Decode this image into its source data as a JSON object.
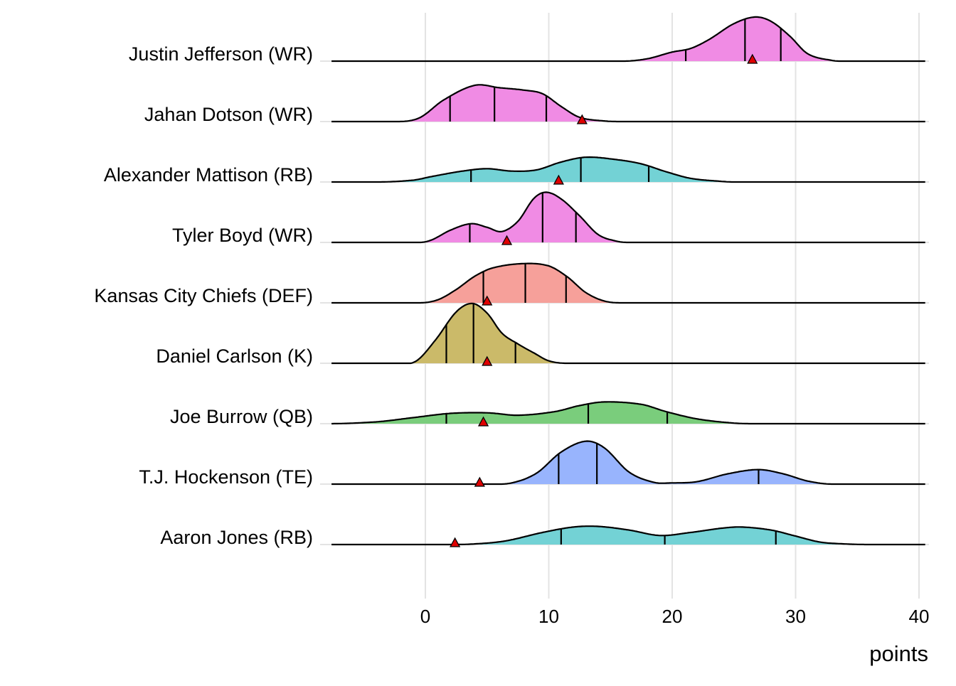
{
  "chart_data": {
    "type": "ridgeline",
    "title": "",
    "xlabel": "points",
    "ylabel": "",
    "xlim": [
      -7.6,
      40.5
    ],
    "xticks": [
      0,
      10,
      20,
      30,
      40
    ],
    "xtick_labels": [
      "0",
      "10",
      "20",
      "30",
      "40"
    ],
    "grid": true,
    "density_scale_note": "relative density height in units of row spacing",
    "colors": {
      "WR": "#f08be4",
      "RB": "#73d2d5",
      "DEF": "#f6a09a",
      "K": "#cbba69",
      "QB": "#7acd7c",
      "TE": "#98b4fd"
    },
    "marker_color": "#e00000",
    "series": [
      {
        "name": "Justin Jefferson (WR)",
        "position": "WR",
        "quantiles": [
          21.1,
          25.9,
          28.8
        ],
        "actual": 26.5,
        "density": [
          [
            16,
            0
          ],
          [
            18,
            0.04
          ],
          [
            20,
            0.15
          ],
          [
            21.5,
            0.21
          ],
          [
            23,
            0.36
          ],
          [
            25,
            0.62
          ],
          [
            26.7,
            0.73
          ],
          [
            28,
            0.66
          ],
          [
            29.5,
            0.42
          ],
          [
            31,
            0.12
          ],
          [
            33,
            0.01
          ],
          [
            34,
            0
          ]
        ]
      },
      {
        "name": "Jahan Dotson (WR)",
        "position": "WR",
        "quantiles": [
          2.0,
          5.6,
          9.8
        ],
        "actual": 12.7,
        "density": [
          [
            -2.5,
            0
          ],
          [
            -0.5,
            0.06
          ],
          [
            1.5,
            0.36
          ],
          [
            4,
            0.6
          ],
          [
            6,
            0.56
          ],
          [
            8,
            0.52
          ],
          [
            9.5,
            0.46
          ],
          [
            11,
            0.25
          ],
          [
            12.5,
            0.07
          ],
          [
            14.5,
            0.01
          ],
          [
            16,
            0
          ]
        ]
      },
      {
        "name": "Alexander Mattison (RB)",
        "position": "RB",
        "quantiles": [
          3.7,
          12.6,
          18.1
        ],
        "actual": 10.8,
        "density": [
          [
            -4,
            0
          ],
          [
            -1,
            0.03
          ],
          [
            0.5,
            0.09
          ],
          [
            3,
            0.18
          ],
          [
            5,
            0.22
          ],
          [
            7,
            0.18
          ],
          [
            9,
            0.2
          ],
          [
            11,
            0.33
          ],
          [
            13,
            0.41
          ],
          [
            15.5,
            0.37
          ],
          [
            17.5,
            0.3
          ],
          [
            19.5,
            0.17
          ],
          [
            21.5,
            0.06
          ],
          [
            24,
            0.01
          ],
          [
            25,
            0
          ]
        ]
      },
      {
        "name": "Tyler Boyd (WR)",
        "position": "WR",
        "quantiles": [
          3.6,
          9.5,
          12.2
        ],
        "actual": 6.6,
        "density": [
          [
            -0.5,
            0
          ],
          [
            0.5,
            0.04
          ],
          [
            2,
            0.2
          ],
          [
            3.7,
            0.31
          ],
          [
            5,
            0.25
          ],
          [
            6.2,
            0.18
          ],
          [
            7.5,
            0.35
          ],
          [
            8.8,
            0.73
          ],
          [
            9.8,
            0.83
          ],
          [
            11,
            0.72
          ],
          [
            12.5,
            0.44
          ],
          [
            14,
            0.13
          ],
          [
            15.5,
            0.02
          ],
          [
            16.5,
            0
          ]
        ]
      },
      {
        "name": "Kansas City Chiefs (DEF)",
        "position": "DEF",
        "quantiles": [
          4.7,
          8.1,
          11.4
        ],
        "actual": 5.0,
        "density": [
          [
            -0.5,
            0
          ],
          [
            1,
            0.05
          ],
          [
            2.5,
            0.22
          ],
          [
            4,
            0.44
          ],
          [
            5.5,
            0.58
          ],
          [
            8,
            0.65
          ],
          [
            10,
            0.61
          ],
          [
            11.5,
            0.43
          ],
          [
            13,
            0.17
          ],
          [
            14.5,
            0.03
          ],
          [
            16,
            0
          ]
        ]
      },
      {
        "name": "Daniel Carlson (K)",
        "position": "K",
        "quantiles": [
          1.7,
          3.9,
          7.3
        ],
        "actual": 5.0,
        "density": [
          [
            -2.5,
            0
          ],
          [
            -0.8,
            0.03
          ],
          [
            0.8,
            0.38
          ],
          [
            2.5,
            0.85
          ],
          [
            3.8,
            0.99
          ],
          [
            5,
            0.83
          ],
          [
            6.2,
            0.5
          ],
          [
            7.5,
            0.32
          ],
          [
            8.8,
            0.17
          ],
          [
            10,
            0.04
          ],
          [
            11.5,
            0
          ]
        ]
      },
      {
        "name": "Joe Burrow (QB)",
        "position": "QB",
        "quantiles": [
          1.7,
          13.2,
          19.6
        ],
        "actual": 4.7,
        "density": [
          [
            -8,
            0
          ],
          [
            -4,
            0.03
          ],
          [
            -1,
            0.1
          ],
          [
            2,
            0.17
          ],
          [
            5,
            0.18
          ],
          [
            7.5,
            0.14
          ],
          [
            10.5,
            0.2
          ],
          [
            12.5,
            0.3
          ],
          [
            14.5,
            0.36
          ],
          [
            17.5,
            0.32
          ],
          [
            19.5,
            0.2
          ],
          [
            22,
            0.08
          ],
          [
            25,
            0.01
          ],
          [
            27,
            0
          ]
        ]
      },
      {
        "name": "T.J. Hockenson (TE)",
        "position": "TE",
        "quantiles": [
          10.8,
          13.9,
          27.0
        ],
        "actual": 4.4,
        "density": [
          [
            5,
            0
          ],
          [
            7,
            0.02
          ],
          [
            9,
            0.18
          ],
          [
            11,
            0.53
          ],
          [
            13,
            0.71
          ],
          [
            14.5,
            0.6
          ],
          [
            16.5,
            0.2
          ],
          [
            18.5,
            0.03
          ],
          [
            20,
            0.02
          ],
          [
            22,
            0.04
          ],
          [
            24.5,
            0.17
          ],
          [
            27,
            0.24
          ],
          [
            29,
            0.17
          ],
          [
            31,
            0.05
          ],
          [
            33,
            0
          ]
        ]
      },
      {
        "name": "Aaron Jones (RB)",
        "position": "RB",
        "quantiles": [
          11.0,
          19.4,
          28.4
        ],
        "actual": 2.4,
        "density": [
          [
            2,
            0
          ],
          [
            4,
            0.01
          ],
          [
            6.5,
            0.06
          ],
          [
            9.5,
            0.2
          ],
          [
            12,
            0.29
          ],
          [
            14,
            0.3
          ],
          [
            16.5,
            0.24
          ],
          [
            19,
            0.15
          ],
          [
            21.5,
            0.2
          ],
          [
            24,
            0.27
          ],
          [
            25.6,
            0.29
          ],
          [
            28,
            0.24
          ],
          [
            30,
            0.14
          ],
          [
            32,
            0.04
          ],
          [
            34,
            0.01
          ],
          [
            36,
            0
          ]
        ]
      }
    ]
  }
}
